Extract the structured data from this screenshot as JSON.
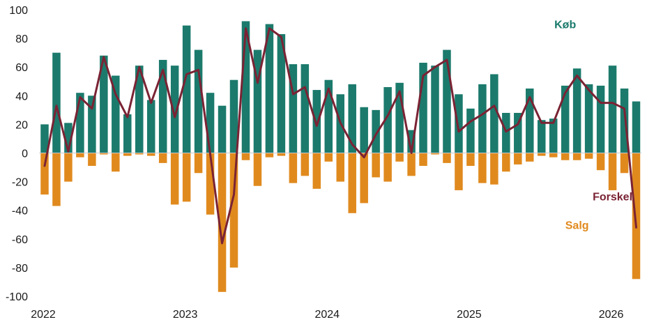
{
  "chart_data": {
    "type": "bar",
    "x_ticks": [
      "2022",
      "2023",
      "2024",
      "2025",
      "2026"
    ],
    "y_ticks": [
      100,
      80,
      60,
      40,
      20,
      0,
      -20,
      -40,
      -60,
      -80,
      -100
    ],
    "ylim": [
      -100,
      100
    ],
    "start_month": "2022-01",
    "series": [
      {
        "name": "Køb",
        "kind": "bar",
        "color": "#1b7a6c",
        "values": [
          20,
          70,
          21,
          42,
          40,
          68,
          54,
          27,
          61,
          37,
          65,
          61,
          89,
          72,
          42,
          33,
          51,
          92,
          72,
          90,
          83,
          62,
          62,
          44,
          51,
          41,
          48,
          32,
          30,
          46,
          49,
          16,
          63,
          61,
          72,
          41,
          31,
          48,
          55,
          28,
          28,
          45,
          23,
          24,
          47,
          59,
          48,
          47,
          61,
          45,
          36
        ]
      },
      {
        "name": "Salg",
        "kind": "bar",
        "color": "#e08a1e",
        "values": [
          -29,
          -37,
          -20,
          -3,
          -9,
          -1,
          -13,
          -2,
          -1,
          -2,
          -7,
          -36,
          -34,
          -14,
          -43,
          -97,
          -80,
          -5,
          -23,
          -3,
          -2,
          -21,
          -16,
          -25,
          -6,
          -20,
          -42,
          -35,
          -17,
          -20,
          -6,
          -16,
          -9,
          -1,
          -7,
          -26,
          -9,
          -21,
          -22,
          -13,
          -8,
          -6,
          -2,
          -3,
          -5,
          -5,
          -4,
          -12,
          -26,
          -14,
          -88
        ]
      },
      {
        "name": "Forskel",
        "kind": "line",
        "color": "#7a2334",
        "values": [
          -9,
          33,
          1,
          39,
          31,
          67,
          41,
          25,
          60,
          35,
          58,
          25,
          55,
          58,
          -1,
          -63,
          -29,
          87,
          49,
          87,
          81,
          41,
          46,
          19,
          45,
          21,
          6,
          -3,
          13,
          26,
          43,
          0,
          54,
          60,
          65,
          15,
          22,
          27,
          33,
          15,
          20,
          39,
          21,
          21,
          42,
          54,
          44,
          35,
          35,
          31,
          -52
        ]
      }
    ],
    "annotations": [
      {
        "text": "Køb",
        "x_month": 44,
        "y": 87
      },
      {
        "text": "Forskel",
        "x_month": 48,
        "y": -33
      },
      {
        "text": "Salg",
        "x_month": 45,
        "y": -53
      }
    ]
  }
}
